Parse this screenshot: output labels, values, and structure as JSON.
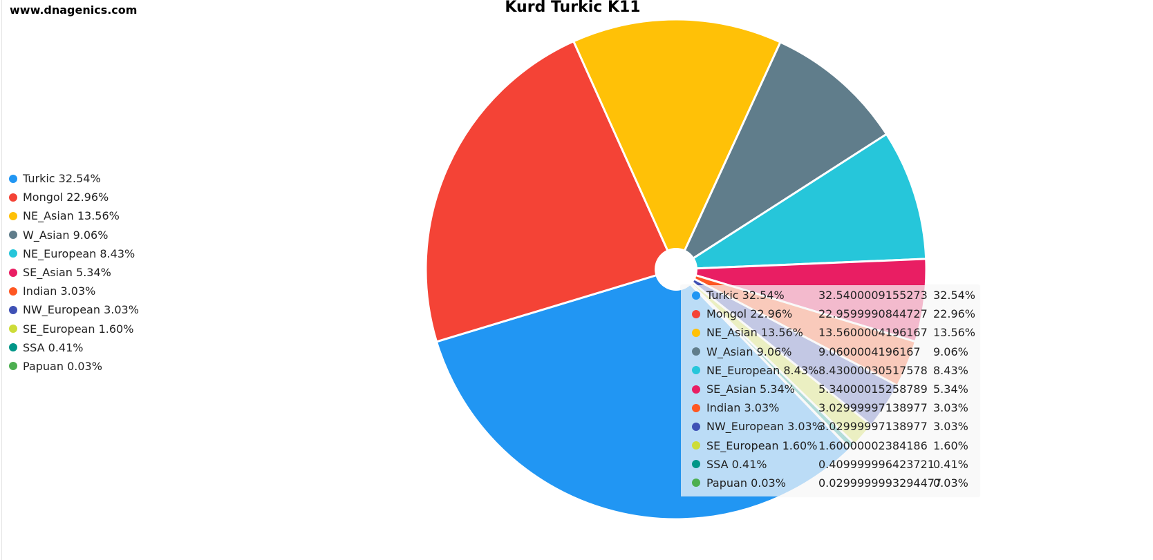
{
  "site": "www.dnagenics.com",
  "chart_data": {
    "type": "pie",
    "title": "Kurd Turkic K11",
    "legend_position": "left",
    "slices": [
      {
        "name": "Turkic",
        "label": "Turkic 32.54%",
        "value": 32.5400009155273,
        "raw": "32.5400009155273",
        "pct": "32.54%",
        "color": "#2196f3"
      },
      {
        "name": "Mongol",
        "label": "Mongol 22.96%",
        "value": 22.9599990844727,
        "raw": "22.9599990844727",
        "pct": "22.96%",
        "color": "#f44336"
      },
      {
        "name": "NE_Asian",
        "label": "NE_Asian 13.56%",
        "value": 13.5600004196167,
        "raw": "13.5600004196167",
        "pct": "13.56%",
        "color": "#ffc107"
      },
      {
        "name": "W_Asian",
        "label": "W_Asian 9.06%",
        "value": 9.0600004196167,
        "raw": "9.0600004196167",
        "pct": "9.06%",
        "color": "#607d8b"
      },
      {
        "name": "NE_European",
        "label": "NE_European 8.43%",
        "value": 8.43000030517578,
        "raw": "8.43000030517578",
        "pct": "8.43%",
        "color": "#26c6da"
      },
      {
        "name": "SE_Asian",
        "label": "SE_Asian 5.34%",
        "value": 5.34000015258789,
        "raw": "5.34000015258789",
        "pct": "5.34%",
        "color": "#e91e63"
      },
      {
        "name": "Indian",
        "label": "Indian 3.03%",
        "value": 3.02999997138977,
        "raw": "3.02999997138977",
        "pct": "3.03%",
        "color": "#ff5722"
      },
      {
        "name": "NW_European",
        "label": "NW_European 3.03%",
        "value": 3.02999997138977,
        "raw": "3.02999997138977",
        "pct": "3.03%",
        "color": "#3f51b5"
      },
      {
        "name": "SE_European",
        "label": "SE_European 1.60%",
        "value": 1.60000002384186,
        "raw": "1.60000002384186",
        "pct": "1.60%",
        "color": "#cddc39"
      },
      {
        "name": "SSA",
        "label": "SSA 0.41%",
        "value": 0.409999996423721,
        "raw": "0.409999996423721",
        "pct": "0.41%",
        "color": "#009688"
      },
      {
        "name": "Papuan",
        "label": "Papuan 0.03%",
        "value": 0.0299999993294477,
        "raw": "0.0299999993294477",
        "pct": "0.03%",
        "color": "#4caf50"
      }
    ]
  }
}
